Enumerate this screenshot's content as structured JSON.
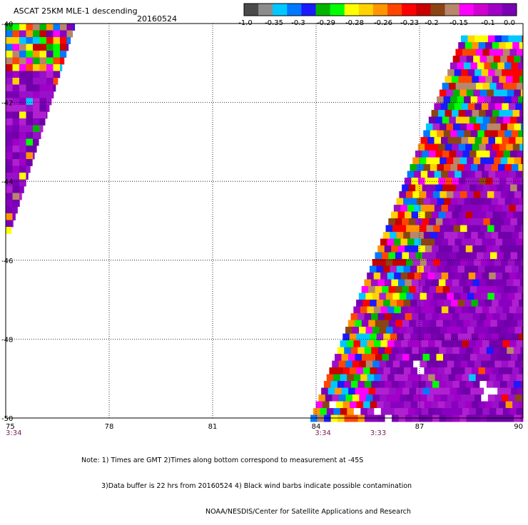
{
  "header": {
    "title": "ASCAT 25KM MLE-1 descending",
    "date": "20160524"
  },
  "colorbar": {
    "labels": [
      "-1.0",
      "-0.35",
      "-0.3",
      "-0.29",
      "-0.28",
      "-0.26",
      "-0.23",
      "-0.2",
      "-0.15",
      "-0.1",
      "0.0"
    ],
    "colors": [
      "#4a4a4a",
      "#8c8c8c",
      "#00c8ff",
      "#0078ff",
      "#1a1aff",
      "#00b400",
      "#00ff00",
      "#ffff00",
      "#ffd200",
      "#ff9600",
      "#ff4600",
      "#ff0000",
      "#c80000",
      "#8b4513",
      "#b8866b",
      "#ff00ff",
      "#d000d0",
      "#a000c8",
      "#7a00b4"
    ]
  },
  "chart_data": {
    "type": "heatmap",
    "x_ticks": [
      "75",
      "78",
      "81",
      "84",
      "87",
      "90"
    ],
    "y_ticks": [
      "-40",
      "-42",
      "-44",
      "-46",
      "-48",
      "-50"
    ],
    "xlim": [
      75,
      90
    ],
    "ylim": [
      -50,
      -40
    ],
    "grid": true,
    "time_labels": [
      {
        "x": 75.0,
        "label": "3:34"
      },
      {
        "x": 84.2,
        "label": "3:34"
      },
      {
        "x": 85.8,
        "label": "3:33"
      }
    ],
    "swaths": [
      {
        "name": "west",
        "lon_range": [
          75.0,
          77.0
        ],
        "lat_range": [
          -40.0,
          -45.3
        ]
      },
      {
        "name": "east",
        "lon_range": [
          83.8,
          90.0
        ],
        "lat_range": [
          -40.3,
          -50.0
        ]
      }
    ]
  },
  "footer": {
    "note_line1": "Note: 1) Times are GMT 2)Times along bottom correspond to measurement at -45S",
    "note_line2": "3)Data buffer is 22 hrs from 20160524 4) Black wind barbs indicate possible contamination",
    "note_line3": "NOAA/NESDIS/Center for Satellite Applications and Research"
  }
}
